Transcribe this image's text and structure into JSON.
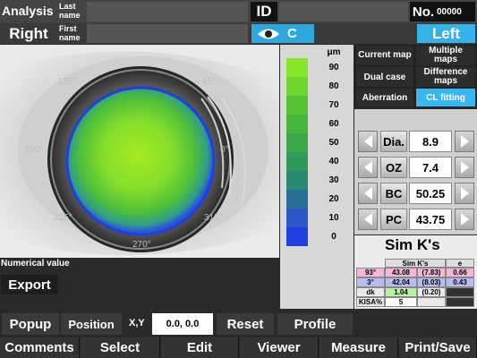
{
  "header": {
    "analysis": "Analysis",
    "last_name_label": "Last name",
    "first_name_label": "First name",
    "id_label": "ID",
    "no_label": "No.",
    "no_value": "00000",
    "right_label": "Right",
    "left_label": "Left",
    "eye_label": "C"
  },
  "image": {
    "angle_labels": [
      "135°",
      "45°",
      "180°",
      "0°",
      "225°",
      "315°",
      "270°"
    ]
  },
  "scale": {
    "unit": "μm",
    "labels": [
      "90",
      "80",
      "70",
      "60",
      "50",
      "40",
      "30",
      "20",
      "10",
      "0"
    ],
    "colors": [
      "#88e62a",
      "#6ed62e",
      "#55c233",
      "#45b63c",
      "#3aa84a",
      "#2f9a5c",
      "#2b8a74",
      "#2a6f98",
      "#2c58c8",
      "#1f3fe0"
    ]
  },
  "maps": {
    "current": "Current map",
    "multiple": "Multiple maps",
    "dual": "Dual case",
    "difference": "Difference maps",
    "aberration": "Aberration",
    "cl_fitting": "CL fitting"
  },
  "fields": [
    {
      "label": "Dia.",
      "value": "8.9"
    },
    {
      "label": "OZ",
      "value": "7.4"
    },
    {
      "label": "BC",
      "value": "50.25"
    },
    {
      "label": "PC",
      "value": "43.75"
    }
  ],
  "simk": {
    "title": "Sim K's",
    "col1": "Sim K's",
    "col2": "e",
    "rows": [
      {
        "axis": "93°",
        "value": "43.08",
        "extra": "(7.83)",
        "e": "0.66"
      },
      {
        "axis": "3°",
        "value": "42.04",
        "extra": "(8.03)",
        "e": "0.43"
      },
      {
        "axis": "dk",
        "value": "1.04",
        "extra": "(0.20)",
        "e": ""
      },
      {
        "axis": "KISA%",
        "value": "5",
        "extra": "",
        "e": ""
      }
    ]
  },
  "numerical_value": "Numerical value",
  "export": "Export",
  "popup": "Popup",
  "position": "Position",
  "xy_label": "X,Y",
  "xy_value": "0.0, 0.0",
  "reset": "Reset",
  "profile": "Profile",
  "bottom": [
    "Comments",
    "Select",
    "Edit",
    "Viewer",
    "Measure",
    "Print/Save"
  ]
}
